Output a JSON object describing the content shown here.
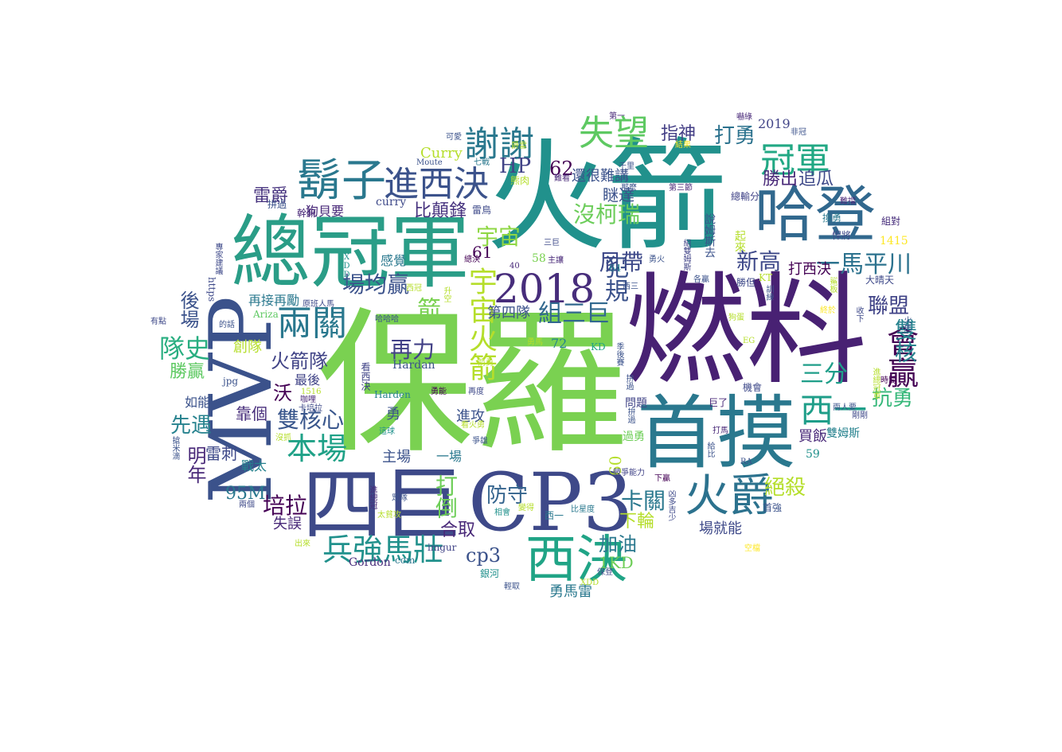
{
  "cloud": {
    "words": [
      {
        "text": "保羅",
        "color": "#7ad151"
      },
      {
        "text": "燃料",
        "color": "#482173"
      },
      {
        "text": "火箭",
        "color": "#21918c"
      },
      {
        "text": "總冠軍",
        "color": "#2a9d87"
      },
      {
        "text": "MVP",
        "color": "#3b528b"
      },
      {
        "text": "CP3",
        "color": "#3e4989"
      },
      {
        "text": "首摸",
        "color": "#2a788e"
      },
      {
        "text": "四巨",
        "color": "#3e4a89"
      },
      {
        "text": "哈登",
        "color": "#31688e"
      },
      {
        "text": "鬍子",
        "color": "#2a788e"
      },
      {
        "text": "進西決",
        "color": "#3b528b"
      },
      {
        "text": "2018",
        "color": "#472d7b"
      },
      {
        "text": "西決",
        "color": "#20a486"
      },
      {
        "text": "兵強馬壯",
        "color": "#21918c"
      },
      {
        "text": "火爵",
        "color": "#2c728e"
      },
      {
        "text": "冠軍",
        "color": "#22a884"
      },
      {
        "text": "謝謝",
        "color": "#2a788e"
      },
      {
        "text": "失望",
        "color": "#5ec962"
      },
      {
        "text": "會贏",
        "color": "#440154"
      },
      {
        "text": "西一",
        "color": "#1f9e89"
      },
      {
        "text": "兩關",
        "color": "#2a788e"
      },
      {
        "text": "隊史",
        "color": "#28ae80"
      },
      {
        "text": "本場",
        "color": "#1fa187"
      },
      {
        "text": "雙核心",
        "color": "#39568c"
      },
      {
        "text": "宇宙火箭",
        "color": "#b5de2b"
      },
      {
        "text": "場均贏",
        "color": "#3b528b"
      },
      {
        "text": "組三巨",
        "color": "#31688e"
      },
      {
        "text": "犯規",
        "color": "#3b528b"
      },
      {
        "text": "一馬平川",
        "color": "#2c728e"
      },
      {
        "text": "新高",
        "color": "#3e4989"
      },
      {
        "text": "雙核",
        "color": "#26828e"
      },
      {
        "text": "聯盟",
        "color": "#404387"
      },
      {
        "text": "抗勇",
        "color": "#35b779"
      },
      {
        "text": "三分",
        "color": "#1f9e89"
      },
      {
        "text": "沒柯瑞",
        "color": "#6ccd5a"
      },
      {
        "text": "尼帶",
        "color": "#3e4989"
      },
      {
        "text": "宇宙",
        "color": "#8fd744"
      },
      {
        "text": "比顛鋒",
        "color": "#46327e"
      },
      {
        "text": "HP",
        "color": "#414487"
      },
      {
        "text": "62",
        "color": "#440154"
      },
      {
        "text": "打勇",
        "color": "#2c728e"
      },
      {
        "text": "勝出",
        "color": "#482878"
      },
      {
        "text": "追瓜",
        "color": "#3e4989"
      },
      {
        "text": "瞇達",
        "color": "#3b528b"
      },
      {
        "text": "指神",
        "color": "#433e85"
      },
      {
        "text": "還很難講",
        "color": "#3b528b"
      },
      {
        "text": "雷爵",
        "color": "#46327e"
      },
      {
        "text": "狗貝要",
        "color": "#482878"
      },
      {
        "text": "再力",
        "color": "#424086"
      },
      {
        "text": "火箭隊",
        "color": "#414487"
      },
      {
        "text": "打倒",
        "color": "#6ece58"
      },
      {
        "text": "卡關",
        "color": "#2a788e"
      },
      {
        "text": "下輪",
        "color": "#b5de2b"
      },
      {
        "text": "加油",
        "color": "#2a788e"
      },
      {
        "text": "絕殺",
        "color": "#b5de2b"
      },
      {
        "text": "培拉",
        "color": "#440154"
      },
      {
        "text": "95M",
        "color": "#2a788e"
      },
      {
        "text": "防守",
        "color": "#33638d"
      },
      {
        "text": "cp3",
        "color": "#3b528b"
      },
      {
        "text": "合取",
        "color": "#482878"
      },
      {
        "text": "勇馬雷",
        "color": "#2a788e"
      },
      {
        "text": "1KD",
        "color": "#6ece58"
      },
      {
        "text": "先遇",
        "color": "#26828e"
      },
      {
        "text": "明年",
        "color": "#482878"
      },
      {
        "text": "雷刺",
        "color": "#3e4989"
      },
      {
        "text": "勝贏",
        "color": "#5ec962"
      },
      {
        "text": "後場",
        "color": "#3b528b"
      },
      {
        "text": "創隊",
        "color": "#b5de2b"
      },
      {
        "text": "最後",
        "color": "#414487"
      },
      {
        "text": "如能",
        "color": "#3b528b"
      },
      {
        "text": "靠個",
        "color": "#472d7b"
      },
      {
        "text": "戰太",
        "color": "#26828e"
      },
      {
        "text": "沃",
        "color": "#440154"
      },
      {
        "text": "失誤",
        "color": "#482878"
      },
      {
        "text": "主場",
        "color": "#3b528b"
      },
      {
        "text": "一場",
        "color": "#2a788e"
      },
      {
        "text": "進攻",
        "color": "#3b528b"
      },
      {
        "text": "61",
        "color": "#440154"
      },
      {
        "text": "感覺",
        "color": "#2a788e"
      },
      {
        "text": "第四隊",
        "color": "#3b528b"
      },
      {
        "text": "再接再勵",
        "color": "#2a788e"
      },
      {
        "text": "箭",
        "color": "#7ad151"
      },
      {
        "text": "買飯",
        "color": "#482878"
      },
      {
        "text": "場就能",
        "color": "#3e4989"
      },
      {
        "text": "打西決",
        "color": "#440154"
      },
      {
        "text": "Curry",
        "color": "#b5de2b"
      },
      {
        "text": "curry",
        "color": "#3e4989"
      },
      {
        "text": "2019",
        "color": "#414487"
      },
      {
        "text": "1415",
        "color": "#fde725"
      },
      {
        "text": "72",
        "color": "#26828e"
      },
      {
        "text": "60",
        "color": "#b5de2b"
      },
      {
        "text": "59",
        "color": "#21918c"
      },
      {
        "text": "58",
        "color": "#7ad151"
      },
      {
        "text": "64",
        "color": "#26828e"
      },
      {
        "text": "勇",
        "color": "#3b528b"
      },
      {
        "text": "KD",
        "color": "#20a486"
      },
      {
        "text": "Hardan",
        "color": "#3b528b"
      },
      {
        "text": "Harden",
        "color": "#26828e"
      },
      {
        "text": "Gordon",
        "color": "#472d7b"
      },
      {
        "text": "com",
        "color": "#2a788e"
      },
      {
        "text": "imgur",
        "color": "#414487"
      },
      {
        "text": "https",
        "color": "#3e4989"
      },
      {
        "text": "jpg",
        "color": "#3b528b"
      },
      {
        "text": "Ariza",
        "color": "#5ec962"
      },
      {
        "text": "Moute",
        "color": "#3b528b"
      },
      {
        "text": "1516",
        "color": "#b5de2b"
      },
      {
        "text": "40",
        "color": "#482878"
      },
      {
        "text": "問題",
        "color": "#414487"
      },
      {
        "text": "雙姆斯",
        "color": "#26828e"
      },
      {
        "text": "過勇",
        "color": "#6ece58"
      },
      {
        "text": "巨了",
        "color": "#482878"
      },
      {
        "text": "機會",
        "color": "#3e4989"
      },
      {
        "text": "首強",
        "color": "#3b528b"
      },
      {
        "text": "大晴天",
        "color": "#3e4989"
      },
      {
        "text": "起來",
        "color": "#b5de2b"
      },
      {
        "text": "說姆斯去",
        "color": "#3b528b"
      },
      {
        "text": "組對",
        "color": "#472d7b"
      },
      {
        "text": "悍將",
        "color": "#3e4989"
      },
      {
        "text": "換勇",
        "color": "#2a788e"
      },
      {
        "text": "難擋",
        "color": "#482878"
      },
      {
        "text": "總輸分",
        "color": "#404387"
      },
      {
        "text": "第三節",
        "color": "#482878"
      },
      {
        "text": "那麼",
        "color": "#3b528b"
      },
      {
        "text": "結果",
        "color": "#fde725"
      },
      {
        "text": "千里",
        "color": "#3b528b"
      },
      {
        "text": "難看",
        "color": "#482878"
      },
      {
        "text": "七戰",
        "color": "#2a788e"
      },
      {
        "text": "第一",
        "color": "#482878"
      },
      {
        "text": "可愛",
        "color": "#3b528b"
      },
      {
        "text": "爵雷",
        "color": "#b5de2b"
      },
      {
        "text": "拼過",
        "color": "#3b528b"
      },
      {
        "text": "幹嘛",
        "color": "#482878"
      },
      {
        "text": "雷鳥",
        "color": "#3e4989"
      },
      {
        "text": "熊肉",
        "color": "#b5de2b"
      },
      {
        "text": "非冠",
        "color": "#3b528b"
      },
      {
        "text": "嚇綠",
        "color": "#482878"
      },
      {
        "text": "有點",
        "color": "#3e4989"
      },
      {
        "text": "的話",
        "color": "#3b528b"
      },
      {
        "text": "專家建議",
        "color": "#3e4989"
      },
      {
        "text": "搶米滴",
        "color": "#3b528b"
      },
      {
        "text": "競爭能力",
        "color": "#404387"
      },
      {
        "text": "比星度",
        "color": "#2a788e"
      },
      {
        "text": "西一",
        "color": "#2a788e"
      },
      {
        "text": "銀河",
        "color": "#21918c"
      },
      {
        "text": "輕取",
        "color": "#3b528b"
      },
      {
        "text": "保登",
        "color": "#3e4989"
      },
      {
        "text": "XDD",
        "color": "#b5de2b"
      },
      {
        "text": "出來",
        "color": "#b5de2b"
      },
      {
        "text": "兩個",
        "color": "#3e4989"
      },
      {
        "text": "眾隊",
        "color": "#3b528b"
      },
      {
        "text": "進總冠",
        "color": "#482878"
      },
      {
        "text": "太貧攻",
        "color": "#b5de2b"
      },
      {
        "text": "相會",
        "color": "#21918c"
      },
      {
        "text": "變得",
        "color": "#b5de2b"
      },
      {
        "text": "季後賽",
        "color": "#3b528b"
      },
      {
        "text": "勇能",
        "color": "#440154"
      },
      {
        "text": "再度",
        "color": "#3e4989"
      },
      {
        "text": "看西決",
        "color": "#404387"
      },
      {
        "text": "箭勇",
        "color": "#b5de2b"
      },
      {
        "text": "爭雄",
        "color": "#3b528b"
      },
      {
        "text": "看火勇",
        "color": "#b5de2b"
      },
      {
        "text": "這球",
        "color": "#21918c"
      },
      {
        "text": "拚過",
        "color": "#3b528b"
      },
      {
        "text": "原班人馬",
        "color": "#3e4989"
      },
      {
        "text": "哈哈哈",
        "color": "#3b528b"
      },
      {
        "text": "西冠",
        "color": "#b5de2b"
      },
      {
        "text": "升空",
        "color": "#b5de2b"
      },
      {
        "text": "總決",
        "color": "#440154"
      },
      {
        "text": "XDDD",
        "color": "#21918c"
      },
      {
        "text": "三巨",
        "color": "#3e4989"
      },
      {
        "text": "主讓",
        "color": "#482878"
      },
      {
        "text": "勇火",
        "color": "#3b528b"
      },
      {
        "text": "西三",
        "color": "#3b528b"
      },
      {
        "text": "各贏",
        "color": "#3b528b"
      },
      {
        "text": "組雙姆斯",
        "color": "#404387"
      },
      {
        "text": "勝但",
        "color": "#3e4989"
      },
      {
        "text": "KT",
        "color": "#b5de2b"
      },
      {
        "text": "鯊板",
        "color": "#b5de2b"
      },
      {
        "text": "收下",
        "color": "#3e4989"
      },
      {
        "text": "火馬",
        "color": "#3b528b"
      },
      {
        "text": "終於",
        "color": "#fde725"
      },
      {
        "text": "狗蛋",
        "color": "#b5de2b"
      },
      {
        "text": "訓練",
        "color": "#3b528b"
      },
      {
        "text": "EG",
        "color": "#b5de2b"
      },
      {
        "text": "時間",
        "color": "#440154"
      },
      {
        "text": "剛剛",
        "color": "#3e4989"
      },
      {
        "text": "兩人要",
        "color": "#3b528b"
      },
      {
        "text": "進總冠軍",
        "color": "#b5de2b"
      },
      {
        "text": "RA",
        "color": "#3b528b"
      },
      {
        "text": "空檔",
        "color": "#fde725"
      },
      {
        "text": "給比",
        "color": "#3b528b"
      },
      {
        "text": "打馬",
        "color": "#482878"
      },
      {
        "text": "凶多吉少",
        "color": "#3e4989"
      },
      {
        "text": "下贏",
        "color": "#440154"
      },
      {
        "text": "卡培拉",
        "color": "#3e4989"
      },
      {
        "text": "咖哩",
        "color": "#482878"
      },
      {
        "text": "沒抓",
        "color": "#b5de2b"
      },
      {
        "text": "勇馬",
        "color": "#b5de2b"
      },
      {
        "text": "拚過",
        "color": "#3b528b"
      }
    ]
  }
}
